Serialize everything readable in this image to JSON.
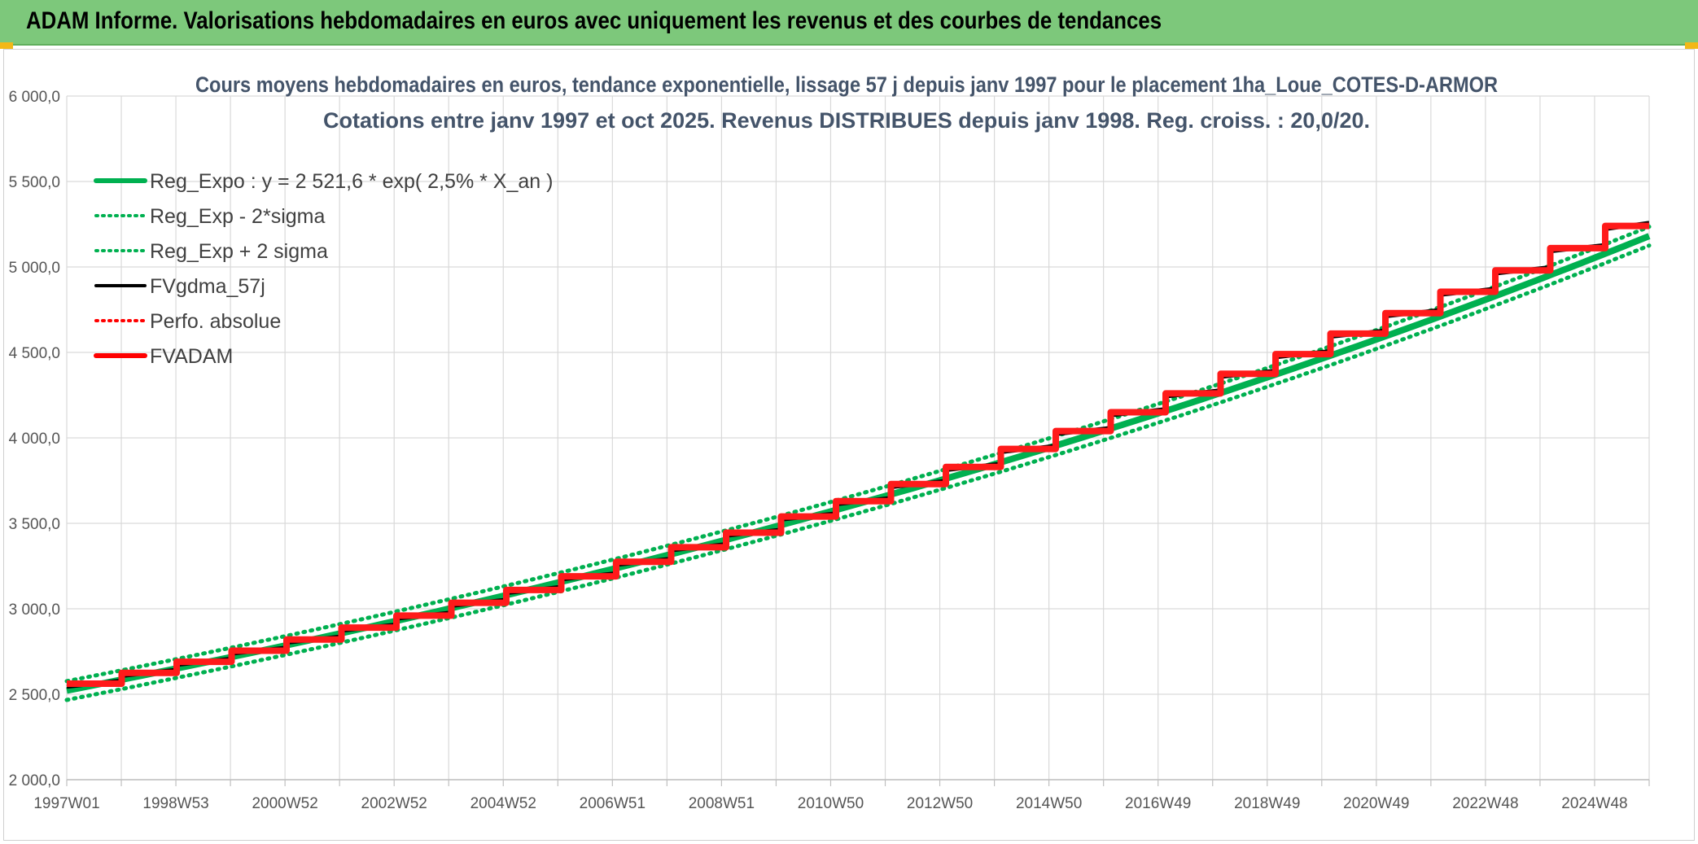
{
  "header": {
    "title": "ADAM Informe. Valorisations hebdomadaires en euros avec uniquement les revenus et des courbes de tendances"
  },
  "chart_data": {
    "type": "line",
    "title": "Cours moyens hebdomadaires en euros, tendance exponentielle, lissage 57 j depuis janv 1997 pour le placement 1ha_Loue_COTES-D-ARMOR",
    "subtitle": "Cotations entre janv 1997 et oct 2025. Revenus DISTRIBUES depuis janv 1998. Reg. croiss. : 20,0/20.",
    "xlabel": "",
    "ylabel": "",
    "x_tick_labels": [
      "1997W01",
      "1998W53",
      "2000W52",
      "2002W52",
      "2004W52",
      "2006W51",
      "2008W51",
      "2010W50",
      "2012W50",
      "2014W50",
      "2016W49",
      "2018W49",
      "2020W49",
      "2022W48",
      "2024W48"
    ],
    "x_range": [
      1997.0,
      2025.8
    ],
    "y_ticks": [
      "2 000,0",
      "2 500,0",
      "3 000,0",
      "3 500,0",
      "4 000,0",
      "4 500,0",
      "5 000,0",
      "5 500,0",
      "6 000,0"
    ],
    "ylim": [
      2000,
      6000
    ],
    "grid": true,
    "legend_position": "top-left",
    "regression": {
      "a": 2521.6,
      "rate": 0.025,
      "sigma_band": 55
    },
    "step_years": [
      1997,
      1998,
      1999,
      2000,
      2001,
      2002,
      2003,
      2004,
      2005,
      2006,
      2007,
      2008,
      2009,
      2010,
      2011,
      2012,
      2013,
      2014,
      2015,
      2016,
      2017,
      2018,
      2019,
      2020,
      2021,
      2022,
      2023,
      2024,
      2025
    ],
    "step_values": [
      2562,
      2625,
      2690,
      2755,
      2820,
      2890,
      2960,
      3035,
      3110,
      3190,
      3275,
      3360,
      3445,
      3540,
      3630,
      3730,
      3830,
      3935,
      4040,
      4150,
      4260,
      4375,
      4490,
      4610,
      4730,
      4855,
      4980,
      5110,
      5240
    ],
    "series": [
      {
        "name": "Reg_Expo : y = 2 521,6 * exp( 2,5% *  X_an )",
        "color": "#00b050",
        "style": "solid-thick"
      },
      {
        "name": "Reg_Exp - 2*sigma",
        "color": "#00b050",
        "style": "dotted"
      },
      {
        "name": "Reg_Exp + 2 sigma",
        "color": "#00b050",
        "style": "dotted"
      },
      {
        "name": "FVgdma_57j",
        "color": "#000000",
        "style": "solid"
      },
      {
        "name": "Perfo. absolue",
        "color": "#ff0000",
        "style": "dotted"
      },
      {
        "name": "FVADAM",
        "color": "#ff0000",
        "style": "solid-thick"
      }
    ]
  }
}
